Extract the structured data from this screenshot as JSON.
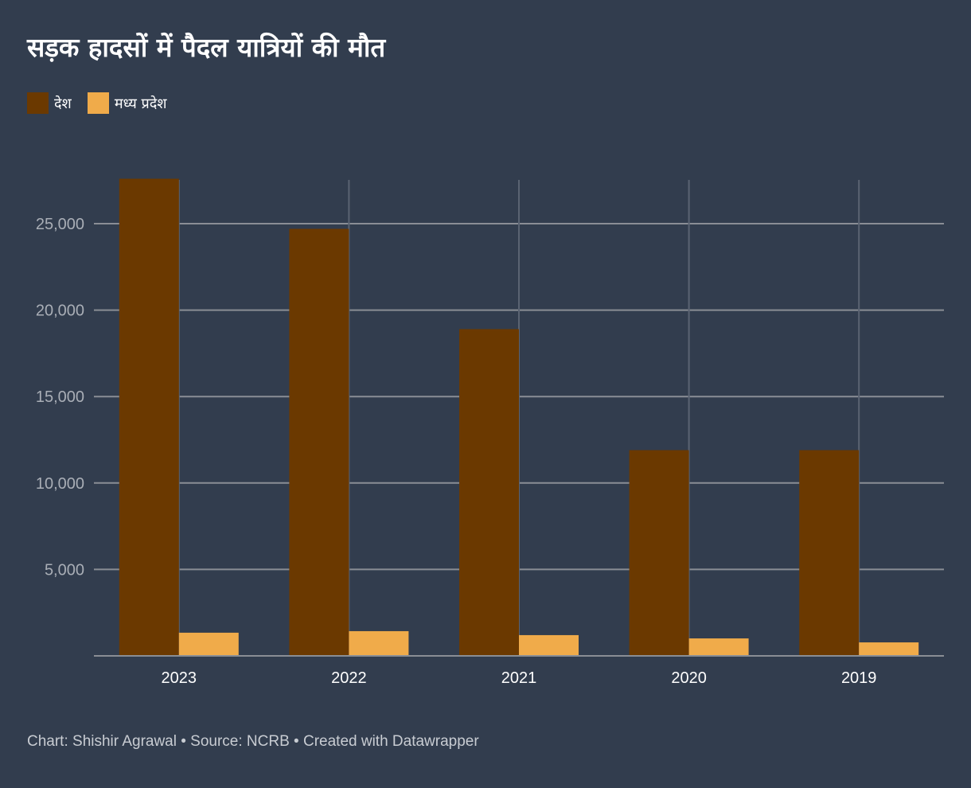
{
  "title": "सड़क हादसों में पैदल यात्रियों की मौत",
  "footer": "Chart: Shishir Agrawal • Source: NCRB • Created with Datawrapper",
  "chart_data": {
    "type": "bar",
    "title": "सड़क हादसों में पैदल यात्रियों की मौत",
    "categories": [
      "2023",
      "2022",
      "2021",
      "2020",
      "2019"
    ],
    "series": [
      {
        "name": "देश",
        "color": "#6b3900",
        "values": [
          27600,
          24700,
          18900,
          11900,
          11900
        ]
      },
      {
        "name": "मध्य प्रदेश",
        "color": "#f0ab4a",
        "values": [
          1340,
          1430,
          1200,
          1010,
          780
        ]
      }
    ],
    "yticks": [
      5000,
      10000,
      15000,
      20000,
      25000
    ],
    "ytick_labels": [
      "5,000",
      "10,000",
      "15,000",
      "20,000",
      "25,000"
    ],
    "ylim": [
      0,
      27600
    ],
    "xlabel": "",
    "ylabel": "",
    "grid": true,
    "legend": "top-left"
  }
}
